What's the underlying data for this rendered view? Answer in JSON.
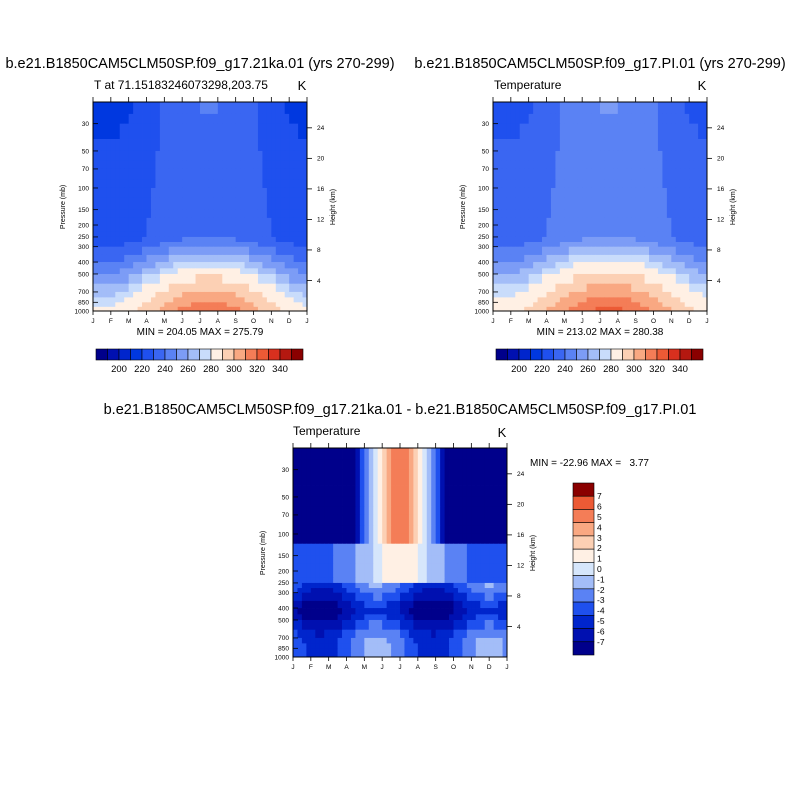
{
  "palette": {
    "temperature_colors": [
      "#00008b",
      "#0010b0",
      "#0025cc",
      "#0038e0",
      "#1f50ee",
      "#3a66f2",
      "#5a82f4",
      "#7c9cf6",
      "#a3bdf8",
      "#c9dcfb",
      "#fff0e4",
      "#fcd0b4",
      "#f9a882",
      "#f47d57",
      "#ec5a35",
      "#d8301e",
      "#b41810",
      "#8a0000"
    ],
    "difference_colors": [
      "#00008b",
      "#0010b0",
      "#0025cc",
      "#1f50ee",
      "#5a82f4",
      "#a3bdf8",
      "#d6e6fb",
      "#fff0e4",
      "#fcd0b4",
      "#f9a882",
      "#f47d57",
      "#ec5a35",
      "#8a0000"
    ]
  },
  "chart_data": [
    {
      "type": "heatmap",
      "title": "b.e21.B1850CAM5CLM50SP.f09_g17.21ka.01 (yrs 270-299)",
      "left_label": "T at 71.15183246073298,203.75",
      "right_label": "K",
      "xlabel": "",
      "ylabel": "Pressure (mb)",
      "y2label": "Height (km)",
      "x_ticks": [
        "J",
        "F",
        "M",
        "A",
        "M",
        "J",
        "J",
        "A",
        "S",
        "O",
        "N",
        "D",
        "J"
      ],
      "y_ticks": [
        "30",
        "50",
        "70",
        "100",
        "150",
        "200",
        "250",
        "300",
        "400",
        "500",
        "700",
        "850",
        "1000"
      ],
      "y2_ticks": [
        "24",
        "20",
        "16",
        "12",
        "8",
        "4"
      ],
      "stats": "MIN = 204.05 MAX = 275.79",
      "min": 204.05,
      "max": 275.79,
      "colorbar_labels": [
        "200",
        "220",
        "240",
        "260",
        "280",
        "300",
        "320",
        "340"
      ],
      "colorbar_levels": [
        190,
        195,
        200,
        205,
        210,
        215,
        220,
        225,
        230,
        235,
        240,
        250,
        260,
        270,
        280,
        290,
        300,
        310,
        320,
        330,
        340,
        350
      ]
    },
    {
      "type": "heatmap",
      "title": "b.e21.B1850CAM5CLM50SP.f09_g17.PI.01 (yrs 270-299)",
      "left_label": "Temperature",
      "right_label": "K",
      "xlabel": "",
      "ylabel": "Pressure (mb)",
      "y2label": "Height (km)",
      "x_ticks": [
        "J",
        "F",
        "M",
        "A",
        "M",
        "J",
        "J",
        "A",
        "S",
        "O",
        "N",
        "D",
        "J"
      ],
      "y_ticks": [
        "30",
        "50",
        "70",
        "100",
        "150",
        "200",
        "250",
        "300",
        "400",
        "500",
        "700",
        "850",
        "1000"
      ],
      "y2_ticks": [
        "24",
        "20",
        "16",
        "12",
        "8",
        "4"
      ],
      "stats": "MIN = 213.02 MAX = 280.38",
      "min": 213.02,
      "max": 280.38,
      "colorbar_labels": [
        "200",
        "220",
        "240",
        "260",
        "280",
        "300",
        "320",
        "340"
      ]
    },
    {
      "type": "heatmap",
      "title": "b.e21.B1850CAM5CLM50SP.f09_g17.21ka.01 - b.e21.B1850CAM5CLM50SP.f09_g17.PI.01",
      "left_label": "Temperature",
      "right_label": "K",
      "xlabel": "",
      "ylabel": "Pressure (mb)",
      "y2label": "Height (km)",
      "x_ticks": [
        "J",
        "F",
        "M",
        "A",
        "M",
        "J",
        "J",
        "A",
        "S",
        "O",
        "N",
        "D",
        "J"
      ],
      "y_ticks": [
        "30",
        "50",
        "70",
        "100",
        "150",
        "200",
        "250",
        "300",
        "400",
        "500",
        "700",
        "850",
        "1000"
      ],
      "y2_ticks": [
        "24",
        "20",
        "16",
        "12",
        "8",
        "4"
      ],
      "stats": "MIN = -22.96 MAX =   3.77",
      "min": -22.96,
      "max": 3.77,
      "colorbar_labels": [
        "7",
        "6",
        "5",
        "4",
        "3",
        "2",
        "1",
        "0",
        "-1",
        "-2",
        "-3",
        "-4",
        "-5",
        "-6",
        "-7"
      ]
    }
  ]
}
